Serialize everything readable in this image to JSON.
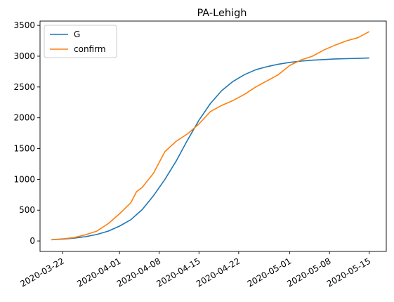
{
  "chart_data": {
    "type": "line",
    "title": "PA-Lehigh",
    "xlabel": "",
    "ylabel": "",
    "x_range": [
      "2020-03-18",
      "2020-05-18"
    ],
    "ylim": [
      -170,
      3570
    ],
    "grid": false,
    "legend_position": "top-left",
    "x_ticks": [
      "2020-03-22",
      "2020-04-01",
      "2020-04-08",
      "2020-04-15",
      "2020-04-22",
      "2020-05-01",
      "2020-05-08",
      "2020-05-15"
    ],
    "y_ticks": [
      0,
      500,
      1000,
      1500,
      2000,
      2500,
      3000,
      3500
    ],
    "series": [
      {
        "name": "G",
        "color": "#1f77b4",
        "x": [
          "2020-03-20",
          "2020-03-22",
          "2020-03-24",
          "2020-03-26",
          "2020-03-28",
          "2020-03-30",
          "2020-04-01",
          "2020-04-03",
          "2020-04-05",
          "2020-04-07",
          "2020-04-09",
          "2020-04-11",
          "2020-04-13",
          "2020-04-15",
          "2020-04-17",
          "2020-04-19",
          "2020-04-21",
          "2020-04-23",
          "2020-04-25",
          "2020-04-27",
          "2020-04-29",
          "2020-05-01",
          "2020-05-03",
          "2020-05-05",
          "2020-05-07",
          "2020-05-09",
          "2020-05-11",
          "2020-05-13",
          "2020-05-15"
        ],
        "values": [
          20,
          30,
          45,
          70,
          105,
          160,
          240,
          345,
          510,
          735,
          1000,
          1300,
          1640,
          1960,
          2230,
          2440,
          2590,
          2700,
          2780,
          2830,
          2870,
          2900,
          2920,
          2935,
          2945,
          2955,
          2960,
          2965,
          2970
        ]
      },
      {
        "name": "confirm",
        "color": "#ff7f0e",
        "x": [
          "2020-03-20",
          "2020-03-22",
          "2020-03-24",
          "2020-03-26",
          "2020-03-28",
          "2020-03-30",
          "2020-04-01",
          "2020-04-03",
          "2020-04-04",
          "2020-04-05",
          "2020-04-07",
          "2020-04-09",
          "2020-04-11",
          "2020-04-13",
          "2020-04-15",
          "2020-04-17",
          "2020-04-19",
          "2020-04-21",
          "2020-04-23",
          "2020-04-25",
          "2020-04-27",
          "2020-04-29",
          "2020-05-01",
          "2020-05-03",
          "2020-05-05",
          "2020-05-07",
          "2020-05-09",
          "2020-05-11",
          "2020-05-13",
          "2020-05-15"
        ],
        "values": [
          20,
          35,
          55,
          100,
          160,
          280,
          440,
          620,
          800,
          870,
          1100,
          1450,
          1620,
          1740,
          1900,
          2100,
          2200,
          2280,
          2380,
          2500,
          2600,
          2700,
          2850,
          2940,
          3000,
          3100,
          3180,
          3250,
          3300,
          3400
        ]
      }
    ]
  }
}
